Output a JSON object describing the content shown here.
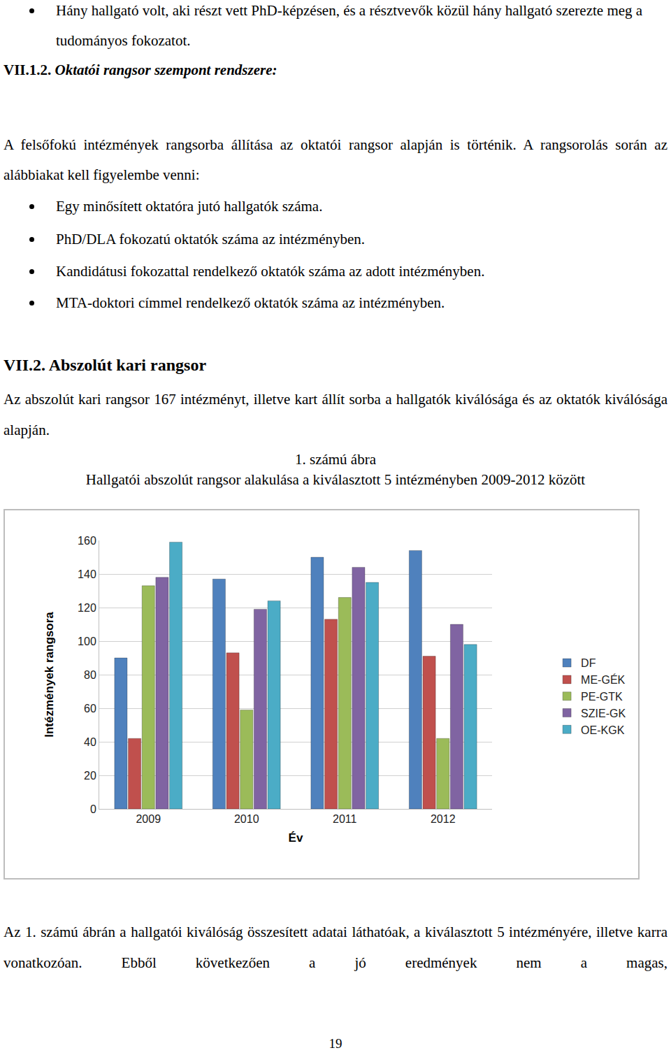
{
  "page": {
    "top_bullet": "Hány hallgató volt, aki részt vett PhD-képzésen, és a résztvevők közül hány hallgató szerezte meg a tudományos fokozatot.",
    "section_1": {
      "number": "VII.1.2.",
      "title": "Oktatói rangsor szempont rendszere:",
      "text": "A felsőfokú intézmények rangsorba állítása az oktatói rangsor alapján is történik. A rangsorolás során az alábbiakat kell figyelembe venni:",
      "bullets": [
        "Egy minősített oktatóra jutó hallgatók száma.",
        "PhD/DLA fokozatú oktatók száma az intézményben.",
        "Kandidátusi fokozattal rendelkező oktatók száma az adott intézményben.",
        "MTA-doktori címmel rendelkező oktatók száma az intézményben."
      ]
    },
    "section_2": {
      "number": "VII.2.",
      "title": "Abszolút kari rangsor",
      "text": "Az abszolút kari rangsor 167 intézményt, illetve kart állít sorba a hallgatók kiválósága és az oktatók kiválósága alapján."
    },
    "after_chart_text": "Az 1. számú ábrán a hallgatói kiválóság összesített adatai láthatóak, a kiválasztott 5 intézményére, illetve karra vonatkozóan. Ebből következően a jó eredmények nem a magas,",
    "page_number": "19"
  },
  "chart_data": {
    "type": "bar",
    "subtitle": "1. számú ábra",
    "title": "Hallgatói abszolút rangsor alakulása a kiválasztott 5 intézményben 2009-2012 között",
    "x_label": "Év",
    "y_label": "Intézmények rangsora",
    "categories": [
      "2009",
      "2010",
      "2011",
      "2012"
    ],
    "series": [
      {
        "name": "DF",
        "color": "#4f81bd",
        "values": [
          90,
          137,
          150,
          154
        ]
      },
      {
        "name": "ME-GÉK",
        "color": "#c0504d",
        "values": [
          42,
          93,
          113,
          91
        ]
      },
      {
        "name": "PE-GTK",
        "color": "#9bbb59",
        "values": [
          133,
          59,
          126,
          42
        ]
      },
      {
        "name": "SZIE-GK",
        "color": "#8064a2",
        "values": [
          138,
          119,
          144,
          110
        ]
      },
      {
        "name": "OE-KGK",
        "color": "#4bacc6",
        "values": [
          159,
          124,
          135,
          98
        ]
      }
    ],
    "ylim": [
      0,
      160
    ],
    "yticks": [
      0,
      20,
      40,
      60,
      80,
      100,
      120,
      140,
      160
    ],
    "grid": true,
    "legend": "right"
  }
}
